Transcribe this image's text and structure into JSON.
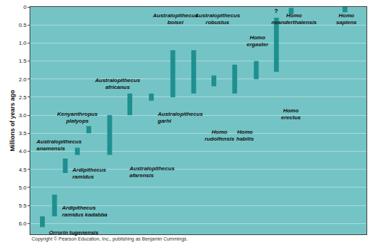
{
  "chart_data": {
    "type": "range",
    "ylabel": "Millions of years ago",
    "footnote": "Copyright © Pearson Education, Inc., publishing as Benjamin Cummings.",
    "ylim": [
      0,
      6.3
    ],
    "yticks": [
      0,
      0.5,
      {
        "value": 1,
        "label": "1.0"
      },
      1.5,
      {
        "value": 2,
        "label": "2.0"
      },
      2.5,
      {
        "value": 3,
        "label": "3.0"
      },
      3.5,
      {
        "value": 4,
        "label": "4.0"
      },
      4.5,
      {
        "value": 5,
        "label": "5.0"
      },
      5.5,
      {
        "value": 6,
        "label": "6.0"
      }
    ],
    "grid": true,
    "tick_labels": "y",
    "color": "#1f8f8f",
    "series": [
      {
        "name": "Orrorin tugenensis",
        "start": 5.8,
        "end": 6.1
      },
      {
        "name": "Ardipithecus ramidus kadabba",
        "start": 5.2,
        "end": 5.8
      },
      {
        "name": "Ardipithecus ramidus",
        "start": 4.2,
        "end": 4.6
      },
      {
        "name": "Australopithecus anamensis",
        "start": 3.9,
        "end": 4.1
      },
      {
        "name": "Kenyanthropus platyops",
        "start": 3.3,
        "end": 3.5
      },
      {
        "name": "Australopithecus afarensis",
        "start": 3.0,
        "end": 4.1
      },
      {
        "name": "Australopithecus africanus",
        "start": 2.4,
        "end": 3.0
      },
      {
        "name": "Australopithecus garhi",
        "start": 2.4,
        "end": 2.6
      },
      {
        "name": "Australopithecus boisei",
        "start": 1.2,
        "end": 2.5
      },
      {
        "name": "Australopithecus robustus",
        "start": 1.2,
        "end": 2.4
      },
      {
        "name": "Homo rudolfensis",
        "start": 1.9,
        "end": 2.2
      },
      {
        "name": "Homo habilis",
        "start": 1.6,
        "end": 2.4
      },
      {
        "name": "Homo ergaster",
        "start": 1.5,
        "end": 2.0
      },
      {
        "name": "Homo erectus",
        "start": 0.3,
        "end": 1.8
      },
      {
        "name": "Homo neanderthalensis",
        "start": 0.03,
        "end": 0.2
      },
      {
        "name": "Homo sapiens",
        "start": 0,
        "end": 0.15
      }
    ],
    "annotations": [
      {
        "text": "?",
        "at": "Homo erectus",
        "y": 0.12
      }
    ]
  }
}
